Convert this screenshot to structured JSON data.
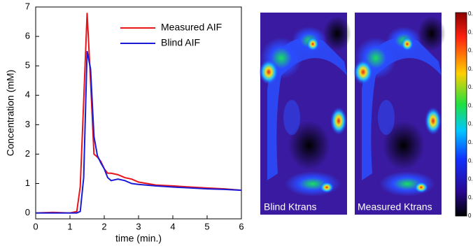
{
  "chart_data": {
    "type": "line",
    "xlabel": "time (min.)",
    "ylabel": "Concentration (mM)",
    "x": [
      0,
      0.5,
      1,
      1.2,
      1.3,
      1.4,
      1.5,
      1.6,
      1.7,
      1.8,
      1.9,
      2,
      2.1,
      2.2,
      2.4,
      2.6,
      2.8,
      3,
      3.5,
      4,
      4.5,
      5,
      5.5,
      6
    ],
    "series": [
      {
        "name": "Measured AIF",
        "color": "#e8141a",
        "values": [
          0,
          0.02,
          0,
          0.05,
          0.9,
          3.8,
          6.8,
          4.5,
          2.0,
          1.9,
          1.75,
          1.5,
          1.35,
          1.35,
          1.3,
          1.2,
          1.15,
          1.05,
          0.95,
          0.92,
          0.88,
          0.85,
          0.82,
          0.77
        ]
      },
      {
        "name": "Blind AIF",
        "color": "#1a1ad6",
        "values": [
          0,
          0,
          0,
          0,
          0.05,
          1.2,
          5.5,
          4.9,
          2.6,
          1.95,
          1.7,
          1.5,
          1.2,
          1.1,
          1.15,
          1.1,
          1.0,
          0.97,
          0.92,
          0.88,
          0.85,
          0.82,
          0.8,
          0.77
        ]
      }
    ],
    "xlim": [
      0,
      6
    ],
    "ylim": [
      -0.2,
      7
    ],
    "xticks": [
      0,
      1,
      2,
      3,
      4,
      5,
      6
    ],
    "yticks": [
      0,
      1,
      2,
      3,
      4,
      5,
      6,
      7
    ],
    "legend": "upper right"
  },
  "images": [
    {
      "label": "Blind Ktrans"
    },
    {
      "label": "Measured Ktrans"
    }
  ],
  "colorbar": {
    "labels": [
      "0.",
      "0.",
      "0.",
      "0.",
      "0.",
      "0.",
      "0.",
      "0.",
      "0.",
      "0.",
      "0.",
      "0"
    ]
  }
}
